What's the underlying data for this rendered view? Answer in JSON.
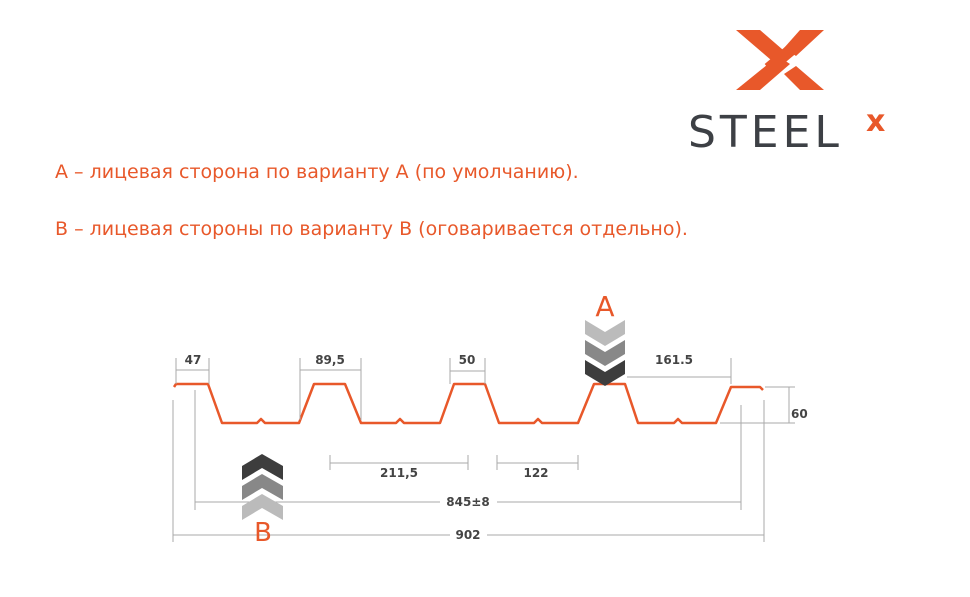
{
  "logo": {
    "text": "STEEL",
    "superscript": "x",
    "brand_color": "#e8582a",
    "text_color": "#3d4045"
  },
  "legend": {
    "line_a": "А – лицевая сторона по варианту А (по умолчанию).",
    "line_b": "В – лицевая стороны по варианту В (оговаривается отдельно)."
  },
  "diagram": {
    "profile_color": "#e8582a",
    "side_a_label": "A",
    "side_b_label": "B",
    "dimensions": {
      "d47": "47",
      "d89_5": "89,5",
      "d50": "50",
      "d161_5": "161.5",
      "d60": "60",
      "d211_5": "211,5",
      "d122": "122",
      "d845": "845±8",
      "d902": "902"
    }
  }
}
